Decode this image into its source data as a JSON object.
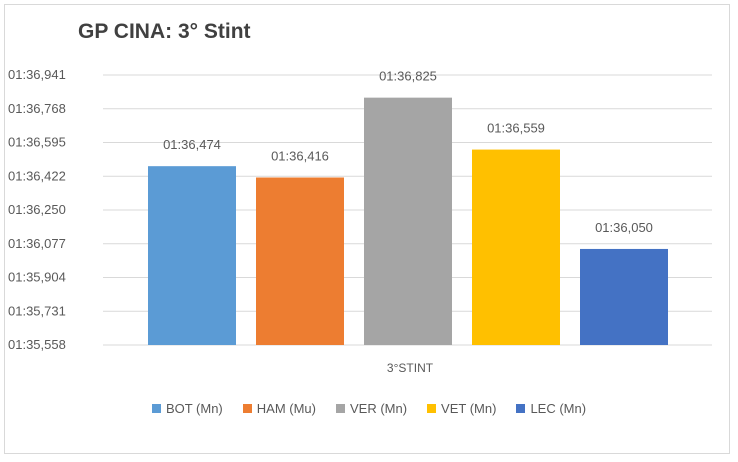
{
  "chart_data": {
    "type": "bar",
    "title": "GP CINA: 3° Stint",
    "categories": [
      "3°STINT"
    ],
    "y_ticks": [
      "01:35,558",
      "01:35,731",
      "01:35,904",
      "01:36,077",
      "01:36,250",
      "01:36,422",
      "01:36,595",
      "01:36,768",
      "01:36,941"
    ],
    "ylim": [
      95.558,
      96.941
    ],
    "grid": true,
    "legend_position": "bottom",
    "series": [
      {
        "name": "BOT (Mn)",
        "value": 96.474,
        "label": "01:36,474",
        "color": "#5b9bd5"
      },
      {
        "name": "HAM (Mu)",
        "value": 96.416,
        "label": "01:36,416",
        "color": "#ed7d31"
      },
      {
        "name": "VER (Mn)",
        "value": 96.825,
        "label": "01:36,825",
        "color": "#a5a5a5"
      },
      {
        "name": "VET (Mn)",
        "value": 96.559,
        "label": "01:36,559",
        "color": "#ffc000"
      },
      {
        "name": "LEC (Mn)",
        "value": 96.05,
        "label": "01:36,050",
        "color": "#4472c4"
      }
    ]
  }
}
